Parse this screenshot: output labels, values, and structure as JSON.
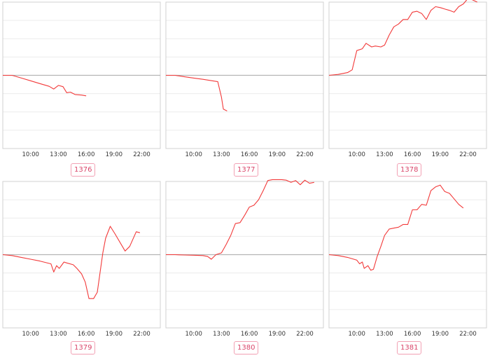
{
  "colors": {
    "line": "#f23a3a",
    "baseline": "#b5b5b5",
    "frame": "#d0d0d0",
    "grid": "#ececec",
    "badge_border": "#f2a1b4",
    "badge_text": "#d9466a"
  },
  "chart_data": [
    {
      "type": "line",
      "label": "1376",
      "x_ticks": [
        "10:00",
        "13:00",
        "16:00",
        "19:00",
        "22:00"
      ],
      "xlim": [
        7,
        24
      ],
      "ylim": [
        -4,
        4
      ],
      "x": [
        7,
        8,
        9,
        10,
        11,
        12,
        12.5,
        13,
        13.5,
        13.9,
        14.3,
        14.8,
        15.5,
        16
      ],
      "y": [
        0,
        0,
        -0.15,
        -0.3,
        -0.45,
        -0.6,
        -0.75,
        -0.55,
        -0.62,
        -0.95,
        -0.92,
        -1.05,
        -1.08,
        -1.12
      ]
    },
    {
      "type": "line",
      "label": "1377",
      "x_ticks": [
        "10:00",
        "13:00",
        "16:00",
        "19:00",
        "22:00"
      ],
      "xlim": [
        7,
        24
      ],
      "ylim": [
        -4,
        4
      ],
      "x": [
        7,
        8,
        9,
        10,
        11,
        12,
        12.6,
        13,
        13.2,
        13.6
      ],
      "y": [
        0,
        0,
        -0.08,
        -0.15,
        -0.22,
        -0.3,
        -0.35,
        -1.2,
        -1.85,
        -1.95
      ]
    },
    {
      "type": "line",
      "label": "1378",
      "x_ticks": [
        "10:00",
        "13:00",
        "16:00",
        "19:00",
        "22:00"
      ],
      "xlim": [
        7,
        24
      ],
      "ylim": [
        -4,
        4
      ],
      "x": [
        7,
        8,
        9,
        9.5,
        10,
        10.6,
        11,
        11.6,
        12,
        12.6,
        13,
        13.5,
        14,
        14.5,
        15,
        15.5,
        16,
        16.5,
        17,
        17.5,
        18,
        18.5,
        19,
        19.5,
        20,
        20.5,
        21,
        21.5,
        22,
        22.5,
        23
      ],
      "y": [
        0,
        0.05,
        0.15,
        0.3,
        1.35,
        1.45,
        1.75,
        1.55,
        1.6,
        1.55,
        1.65,
        2.2,
        2.65,
        2.8,
        3.05,
        3.05,
        3.45,
        3.5,
        3.38,
        3.05,
        3.55,
        3.75,
        3.7,
        3.62,
        3.55,
        3.45,
        3.75,
        3.9,
        4.2,
        4.12,
        4.0
      ]
    },
    {
      "type": "line",
      "label": "1379",
      "x_ticks": [
        "10:00",
        "13:00",
        "16:00",
        "19:00",
        "22:00"
      ],
      "xlim": [
        7,
        24
      ],
      "ylim": [
        -4,
        4
      ],
      "x": [
        7,
        8,
        9,
        10,
        11,
        12.2,
        12.5,
        12.8,
        13.1,
        13.6,
        13.9,
        14.6,
        15,
        15.5,
        15.9,
        16.3,
        16.8,
        17.2,
        17.8,
        18.1,
        18.6,
        19.1,
        20.2,
        20.7,
        21.4,
        21.8
      ],
      "y": [
        0,
        -0.05,
        -0.15,
        -0.25,
        -0.35,
        -0.5,
        -0.95,
        -0.6,
        -0.75,
        -0.4,
        -0.45,
        -0.55,
        -0.75,
        -1.05,
        -1.5,
        -2.4,
        -2.4,
        -2.05,
        0.1,
        0.9,
        1.55,
        1.15,
        0.2,
        0.45,
        1.25,
        1.2
      ]
    },
    {
      "type": "line",
      "label": "1380",
      "x_ticks": [
        "10:00",
        "13:00",
        "16:00",
        "19:00",
        "22:00"
      ],
      "xlim": [
        7,
        24
      ],
      "ylim": [
        -4,
        4
      ],
      "x": [
        7,
        8,
        9,
        10,
        11,
        11.5,
        11.9,
        12.4,
        13,
        13.5,
        14,
        14.5,
        15,
        15.5,
        16,
        16.5,
        17,
        17.5,
        18,
        18.5,
        19,
        19.5,
        20,
        20.5,
        21,
        21.5,
        22,
        22.5,
        23
      ],
      "y": [
        0,
        0,
        -0.02,
        -0.03,
        -0.05,
        -0.1,
        -0.25,
        0.0,
        0.1,
        0.55,
        1.05,
        1.7,
        1.75,
        2.15,
        2.6,
        2.7,
        3.0,
        3.5,
        4.05,
        4.1,
        4.1,
        4.1,
        4.07,
        3.95,
        4.05,
        3.82,
        4.07,
        3.9,
        3.95
      ]
    },
    {
      "type": "line",
      "label": "1381",
      "x_ticks": [
        "10:00",
        "13:00",
        "16:00",
        "19:00",
        "22:00"
      ],
      "xlim": [
        7,
        24
      ],
      "ylim": [
        -4,
        4
      ],
      "x": [
        7,
        8,
        9,
        10,
        10.3,
        10.6,
        10.8,
        11.2,
        11.5,
        11.8,
        12.2,
        12.6,
        13,
        13.5,
        14,
        14.5,
        15,
        15.5,
        16,
        16.5,
        17,
        17.5,
        18,
        18.5,
        19,
        19.5,
        20,
        20.5,
        21,
        21.5
      ],
      "y": [
        0,
        -0.05,
        -0.15,
        -0.3,
        -0.5,
        -0.4,
        -0.75,
        -0.6,
        -0.85,
        -0.8,
        -0.1,
        0.45,
        1.05,
        1.4,
        1.45,
        1.5,
        1.65,
        1.65,
        2.45,
        2.45,
        2.75,
        2.7,
        3.5,
        3.7,
        3.8,
        3.45,
        3.35,
        3.05,
        2.75,
        2.55
      ]
    }
  ]
}
